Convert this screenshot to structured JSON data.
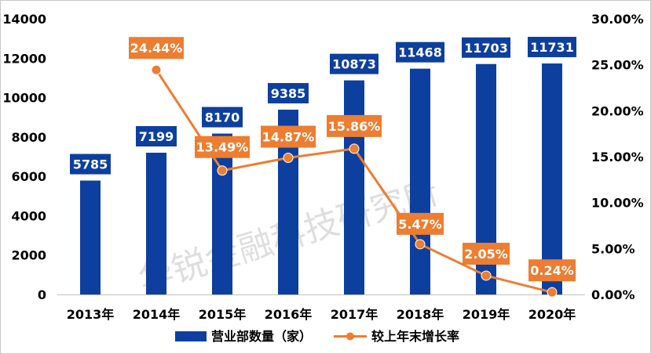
{
  "chart_data": {
    "type": "bar",
    "categories": [
      "2013年",
      "2014年",
      "2015年",
      "2016年",
      "2017年",
      "2018年",
      "2019年",
      "2020年"
    ],
    "series": [
      {
        "name": "营业部数量（家）",
        "kind": "bar",
        "axis": "left",
        "values": [
          5785,
          7199,
          8170,
          9385,
          10873,
          11468,
          11703,
          11731
        ],
        "labels": [
          "5785",
          "7199",
          "8170",
          "9385",
          "10873",
          "11468",
          "11703",
          "11731"
        ]
      },
      {
        "name": "较上年末增长率",
        "kind": "line",
        "axis": "right",
        "values": [
          null,
          24.44,
          13.49,
          14.87,
          15.86,
          5.47,
          2.05,
          0.24
        ],
        "labels": [
          "",
          "24.44%",
          "13.49%",
          "14.87%",
          "15.86%",
          "5.47%",
          "2.05%",
          "0.24%"
        ]
      }
    ],
    "y_left": {
      "min": 0,
      "max": 14000,
      "ticks": [
        "0",
        "2000",
        "4000",
        "6000",
        "8000",
        "10000",
        "12000",
        "14000"
      ]
    },
    "y_right": {
      "min": 0,
      "max": 30,
      "ticks": [
        "0.00%",
        "5.00%",
        "10.00%",
        "15.00%",
        "20.00%",
        "25.00%",
        "30.00%"
      ]
    },
    "legend": {
      "position": "bottom"
    },
    "grid": false,
    "watermark": "华锐金融科技研究所"
  },
  "colors": {
    "bar": "#0d3f9e",
    "line": "#ed7d31"
  }
}
